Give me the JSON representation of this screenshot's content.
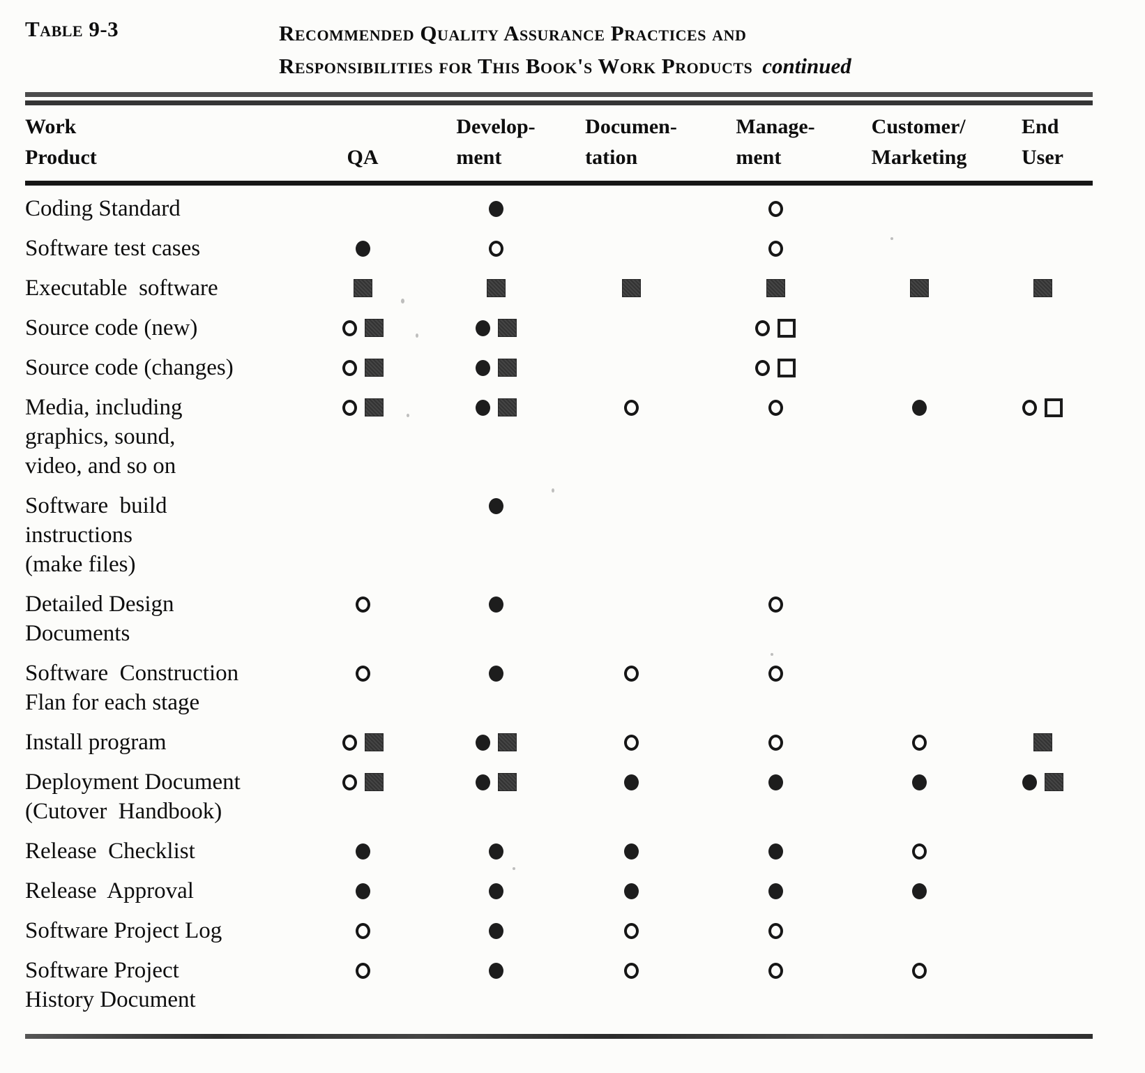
{
  "header": {
    "table_label": "Table 9-3",
    "title_line1": "Recommended Quality Assurance Practices and",
    "title_line2": "Responsibilities for This Book's Work Products",
    "continued": "continued"
  },
  "columns": [
    {
      "id": "work-product",
      "lines": [
        "Work",
        "Product"
      ]
    },
    {
      "id": "qa",
      "lines": [
        "QA"
      ]
    },
    {
      "id": "development",
      "lines": [
        "Develop-",
        "ment"
      ]
    },
    {
      "id": "documentation",
      "lines": [
        "Documen-",
        "tation"
      ]
    },
    {
      "id": "management",
      "lines": [
        "Manage-",
        "ment"
      ]
    },
    {
      "id": "customer-marketing",
      "lines": [
        "Customer/",
        "Marketing"
      ]
    },
    {
      "id": "end-user",
      "lines": [
        "End",
        "User"
      ]
    }
  ],
  "symbol_glyphs": {
    "filled-circle": "●",
    "open-circle": "○",
    "filled-square": "■",
    "open-square": "□"
  },
  "rows": [
    {
      "product_lines": [
        "Coding Standard"
      ],
      "cells": [
        [],
        [
          "filled-circle"
        ],
        [],
        [
          "open-circle"
        ],
        [],
        []
      ]
    },
    {
      "product_lines": [
        "Software test cases"
      ],
      "cells": [
        [
          "filled-circle"
        ],
        [
          "open-circle"
        ],
        [],
        [
          "open-circle"
        ],
        [],
        []
      ]
    },
    {
      "product_lines": [
        "Executable  software"
      ],
      "cells": [
        [
          "filled-square"
        ],
        [
          "filled-square"
        ],
        [
          "filled-square"
        ],
        [
          "filled-square"
        ],
        [
          "filled-square"
        ],
        [
          "filled-square"
        ]
      ]
    },
    {
      "product_lines": [
        "Source code (new)"
      ],
      "cells": [
        [
          "open-circle",
          "filled-square"
        ],
        [
          "filled-circle",
          "filled-square"
        ],
        [],
        [
          "open-circle",
          "open-square"
        ],
        [],
        []
      ]
    },
    {
      "product_lines": [
        "Source code (changes)"
      ],
      "cells": [
        [
          "open-circle",
          "filled-square"
        ],
        [
          "filled-circle",
          "filled-square"
        ],
        [],
        [
          "open-circle",
          "open-square"
        ],
        [],
        []
      ]
    },
    {
      "product_lines": [
        "Media, including",
        "graphics, sound,",
        "video, and so on"
      ],
      "cells": [
        [
          "open-circle",
          "filled-square"
        ],
        [
          "filled-circle",
          "filled-square"
        ],
        [
          "open-circle"
        ],
        [
          "open-circle"
        ],
        [
          "filled-circle"
        ],
        [
          "open-circle",
          "open-square"
        ]
      ]
    },
    {
      "product_lines": [
        "Software  build",
        "instructions",
        "(make files)"
      ],
      "cells": [
        [],
        [
          "filled-circle"
        ],
        [],
        [],
        [],
        []
      ]
    },
    {
      "product_lines": [
        "Detailed Design",
        "Documents"
      ],
      "cells": [
        [
          "open-circle"
        ],
        [
          "filled-circle"
        ],
        [],
        [
          "open-circle"
        ],
        [],
        []
      ]
    },
    {
      "product_lines": [
        "Software  Construction",
        "Flan for each stage"
      ],
      "cells": [
        [
          "open-circle"
        ],
        [
          "filled-circle"
        ],
        [
          "open-circle"
        ],
        [
          "open-circle"
        ],
        [],
        []
      ]
    },
    {
      "product_lines": [
        "Install program"
      ],
      "cells": [
        [
          "open-circle",
          "filled-square"
        ],
        [
          "filled-circle",
          "filled-square"
        ],
        [
          "open-circle"
        ],
        [
          "open-circle"
        ],
        [
          "open-circle"
        ],
        [
          "filled-square"
        ]
      ]
    },
    {
      "product_lines": [
        "Deployment Document",
        "(Cutover  Handbook)"
      ],
      "cells": [
        [
          "open-circle",
          "filled-square"
        ],
        [
          "filled-circle",
          "filled-square"
        ],
        [
          "filled-circle"
        ],
        [
          "filled-circle"
        ],
        [
          "filled-circle"
        ],
        [
          "filled-circle",
          "filled-square"
        ]
      ]
    },
    {
      "product_lines": [
        "Release  Checklist"
      ],
      "cells": [
        [
          "filled-circle"
        ],
        [
          "filled-circle"
        ],
        [
          "filled-circle"
        ],
        [
          "filled-circle"
        ],
        [
          "open-circle"
        ],
        []
      ]
    },
    {
      "product_lines": [
        "Release  Approval"
      ],
      "cells": [
        [
          "filled-circle"
        ],
        [
          "filled-circle"
        ],
        [
          "filled-circle"
        ],
        [
          "filled-circle"
        ],
        [
          "filled-circle"
        ],
        []
      ]
    },
    {
      "product_lines": [
        "Software Project Log"
      ],
      "cells": [
        [
          "open-circle"
        ],
        [
          "filled-circle"
        ],
        [
          "open-circle"
        ],
        [
          "open-circle"
        ],
        [],
        []
      ]
    },
    {
      "product_lines": [
        "Software Project",
        "History Document"
      ],
      "cells": [
        [
          "open-circle"
        ],
        [
          "filled-circle"
        ],
        [
          "open-circle"
        ],
        [
          "open-circle"
        ],
        [
          "open-circle"
        ],
        []
      ]
    }
  ]
}
